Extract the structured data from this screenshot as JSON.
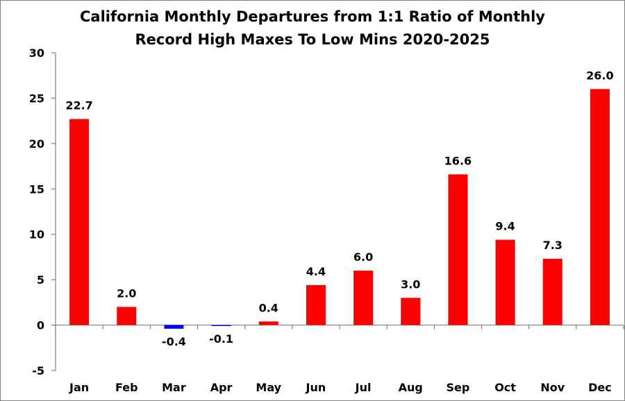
{
  "chart_data": {
    "type": "bar",
    "title_lines": [
      "California Monthly Departures from 1:1 Ratio of Monthly",
      "Record High Maxes To Low Mins 2020-2025"
    ],
    "categories": [
      "Jan",
      "Feb",
      "Mar",
      "Apr",
      "May",
      "Jun",
      "Jul",
      "Aug",
      "Sep",
      "Oct",
      "Nov",
      "Dec"
    ],
    "values": [
      22.7,
      2.0,
      -0.4,
      -0.1,
      0.4,
      4.4,
      6.0,
      3.0,
      16.6,
      9.4,
      7.3,
      26.0
    ],
    "data_labels": [
      "22.7",
      "2.0",
      "-0.4",
      "-0.1",
      "0.4",
      "4.4",
      "6.0",
      "3.0",
      "16.6",
      "9.4",
      "7.3",
      "26.0"
    ],
    "ylim": [
      -5,
      30
    ],
    "yticks": [
      30,
      25,
      20,
      15,
      10,
      5,
      0,
      -5
    ],
    "xlabel": "",
    "ylabel": "",
    "grid": false,
    "legend": "none",
    "colors": {
      "positive": "#ff0000",
      "negative": "#0000ff",
      "axis": "#7f7f7f"
    }
  }
}
